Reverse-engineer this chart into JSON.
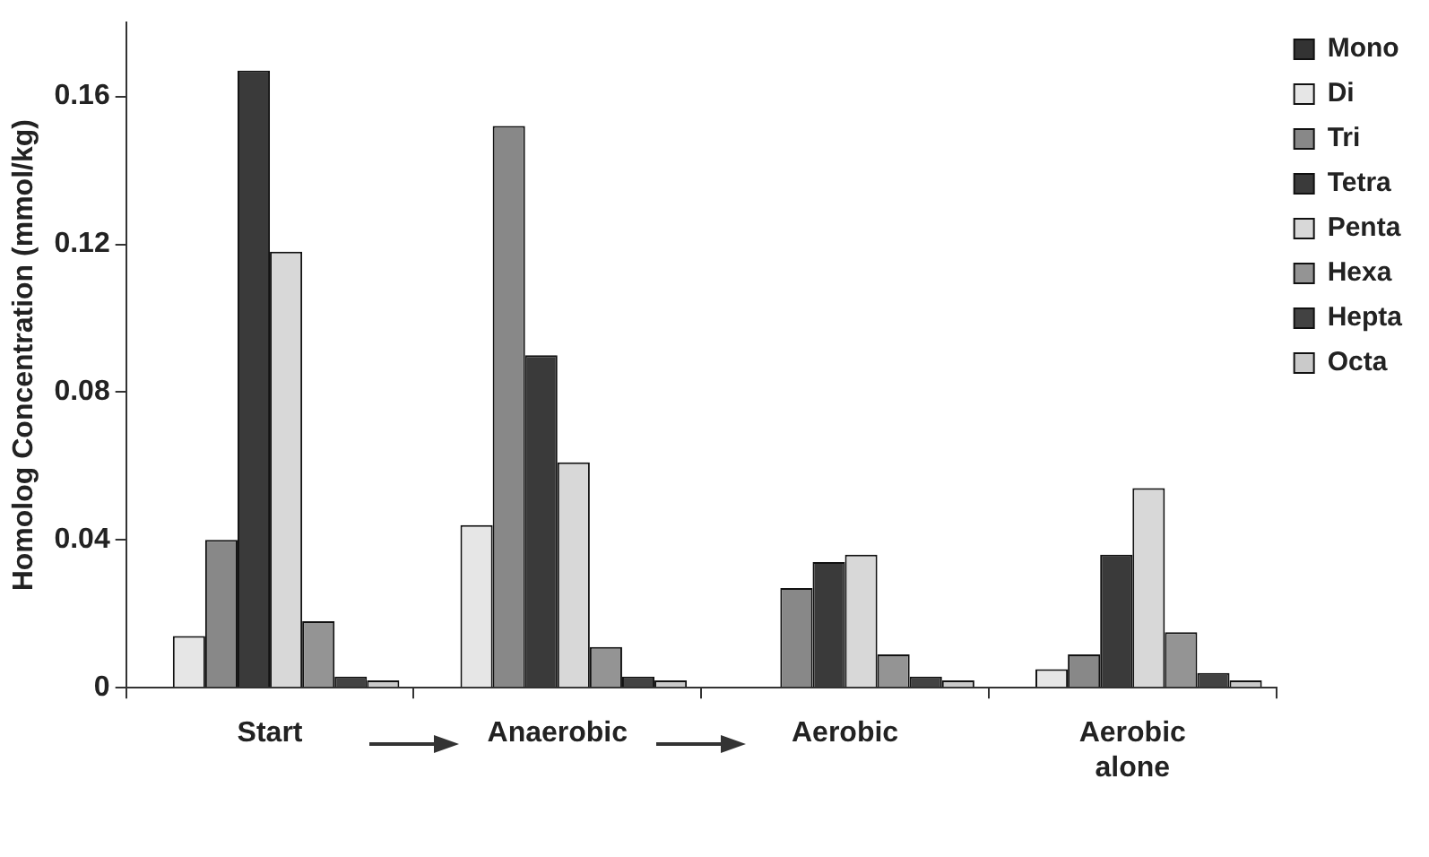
{
  "chart_data": {
    "type": "bar",
    "ylabel": "Homolog Concentration (mmol/kg)",
    "categories": [
      "Start",
      "Anaerobic",
      "Aerobic",
      "Aerobic alone"
    ],
    "series": [
      {
        "name": "Mono",
        "color": "#333333",
        "values": [
          0,
          0,
          0,
          0
        ]
      },
      {
        "name": "Di",
        "color": "#e6e6e6",
        "values": [
          0.014,
          0.044,
          0,
          0.005
        ]
      },
      {
        "name": "Tri",
        "color": "#888888",
        "values": [
          0.04,
          0.152,
          0.027,
          0.009
        ]
      },
      {
        "name": "Tetra",
        "color": "#3a3a3a",
        "values": [
          0.167,
          0.09,
          0.034,
          0.036
        ]
      },
      {
        "name": "Penta",
        "color": "#d8d8d8",
        "values": [
          0.118,
          0.061,
          0.036,
          0.054
        ]
      },
      {
        "name": "Hexa",
        "color": "#949494",
        "values": [
          0.018,
          0.011,
          0.009,
          0.015
        ]
      },
      {
        "name": "Hepta",
        "color": "#424242",
        "values": [
          0.003,
          0.003,
          0.003,
          0.004
        ]
      },
      {
        "name": "Octa",
        "color": "#cacaca",
        "values": [
          0.002,
          0.002,
          0.002,
          0.002
        ]
      }
    ],
    "ylim": [
      0,
      0.18
    ],
    "yticks": [
      0,
      0.04,
      0.08,
      0.12,
      0.16
    ],
    "grid": false,
    "legend": "top right"
  }
}
